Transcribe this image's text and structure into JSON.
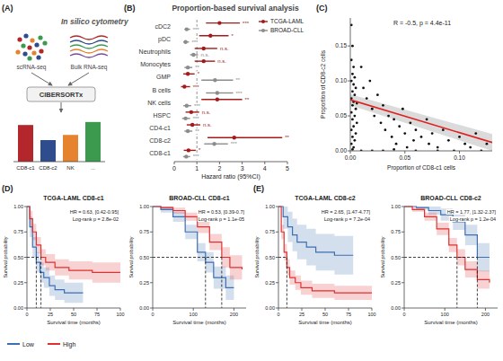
{
  "chart_data": [
    {
      "type": "bar",
      "panel": "(A)",
      "title": "In silico cytometry",
      "annotations": [
        "scRNA-seq",
        "Bulk RNA-seq",
        "CIBERSORTx"
      ],
      "categories": [
        "CD8-c1",
        "CD8-c2",
        "NK",
        "..."
      ],
      "values": [
        0.85,
        0.5,
        0.62,
        0.92
      ],
      "colors": [
        "#b3262b",
        "#2f4d8c",
        "#e5832e",
        "#3c9a4e"
      ],
      "ylim": [
        0,
        1
      ],
      "tick_labels": "x"
    },
    {
      "type": "forest",
      "panel": "(B)",
      "title": "Proportion-based survival analysis",
      "x_label": "Hazard ratio (95%CI)",
      "orientation": "horizontal",
      "legend": "top-right",
      "categories": [
        "cDC2",
        "pDC",
        "Neutrophils",
        "Monocytes",
        "GMP",
        "B cells",
        "NK cells",
        "HSPC",
        "CD4-c1",
        "CD8-c2",
        "CD8-c1"
      ],
      "xlim": [
        0,
        5
      ],
      "xticks": [
        0,
        1,
        2,
        3,
        4,
        5
      ],
      "ref_line": 1,
      "series": [
        {
          "name": "TCGA-LAML",
          "color": "#a31a1a",
          "values": [
            2.0,
            1.6,
            1.3,
            1.3,
            0.6,
            0.45,
            1.9,
            0.75,
            0.8,
            2.65,
            0.63
          ],
          "lower": [
            1.4,
            1.1,
            0.9,
            0.9,
            0.4,
            0.3,
            1.2,
            0.5,
            0.55,
            1.47,
            0.42
          ],
          "upper": [
            2.9,
            2.4,
            1.9,
            1.8,
            0.9,
            0.7,
            3.0,
            1.1,
            1.15,
            4.77,
            0.95
          ],
          "significance": [
            "***",
            "*",
            "n.s.",
            "n.s.",
            "*",
            "***",
            "**",
            "n.s.",
            "n.s.",
            "**",
            "*"
          ]
        },
        {
          "name": "BROAD-CLL",
          "color": "#8c8c8c",
          "values": [
            0.55,
            0.5,
            0.85,
            0.6,
            1.8,
            1.9,
            0.55,
            0.5,
            0.6,
            1.77,
            0.53
          ],
          "lower": [
            0.45,
            0.4,
            0.7,
            0.45,
            1.2,
            1.4,
            0.4,
            0.35,
            0.45,
            1.32,
            0.39
          ],
          "upper": [
            0.7,
            0.65,
            1.05,
            0.8,
            2.6,
            2.6,
            0.75,
            0.7,
            0.8,
            2.37,
            0.7
          ],
          "significance": [
            "***",
            "***",
            "n.s.",
            "**",
            "**",
            "***",
            "***",
            "***",
            "**",
            "***",
            "***"
          ]
        }
      ]
    },
    {
      "type": "scatter",
      "panel": "(C)",
      "annotations": [
        "R = -0.5, p = 4.4e-11"
      ],
      "x_label": "Proportion of CD8-c1 cells",
      "y_label": "Proportion of CD8-c2 cells",
      "color": "#111111",
      "xlim": [
        0,
        0.13
      ],
      "ylim": [
        0,
        0.19
      ],
      "xticks": [
        {
          "value": 0,
          "label": "0.00"
        },
        0.05,
        {
          "value": 0.1,
          "label": "0.10"
        }
      ],
      "yticks": [
        {
          "value": 0,
          "label": "0.00"
        },
        0.05,
        {
          "value": 0.1,
          "label": "0.10"
        },
        0.15
      ],
      "x": [
        0.001,
        0.002,
        0.001,
        0.003,
        0.002,
        0.004,
        0.001,
        0.003,
        0.005,
        0.002,
        0.004,
        0.001,
        0.003,
        0.006,
        0.002,
        0.005,
        0.001,
        0.004,
        0.002,
        0.006,
        0.003,
        0.001,
        0.005,
        0.002,
        0.004,
        0.001,
        0.003,
        0.002,
        0.01,
        0.012,
        0.015,
        0.018,
        0.02,
        0.022,
        0.025,
        0.028,
        0.03,
        0.032,
        0.035,
        0.038,
        0.04,
        0.042,
        0.045,
        0.048,
        0.05,
        0.052,
        0.055,
        0.058,
        0.06,
        0.065,
        0.07,
        0.072,
        0.075,
        0.08,
        0.085,
        0.09,
        0.095,
        0.1,
        0.105,
        0.11,
        0.115,
        0.12,
        0.125,
        0.01,
        0.02,
        0.03,
        0.04,
        0.06,
        0.08
      ],
      "values": [
        0.18,
        0.15,
        0.13,
        0.12,
        0.11,
        0.105,
        0.1,
        0.095,
        0.09,
        0.085,
        0.08,
        0.075,
        0.07,
        0.068,
        0.065,
        0.06,
        0.055,
        0.05,
        0.045,
        0.04,
        0.035,
        0.03,
        0.025,
        0.02,
        0.015,
        0.01,
        0.005,
        0.002,
        0.12,
        0.09,
        0.075,
        0.1,
        0.06,
        0.05,
        0.08,
        0.04,
        0.065,
        0.03,
        0.05,
        0.02,
        0.045,
        0.01,
        0.035,
        0.06,
        0.025,
        0.005,
        0.04,
        0.015,
        0.03,
        0.02,
        0.045,
        0.01,
        0.025,
        0.005,
        0.03,
        0.015,
        0,
        0.02,
        0.01,
        0.005,
        0.025,
        0,
        0.01,
        0,
        0,
        0,
        0.002,
        0,
        0
      ],
      "fit": {
        "color": "#e02020",
        "x": [
          0,
          0.13
        ],
        "values": [
          0.073,
          0.012
        ],
        "lower": [
          0.065,
          0.0
        ],
        "upper": [
          0.081,
          0.024
        ]
      }
    },
    {
      "type": "survival",
      "panel": "(D)",
      "title": "TCGA-LAML CD8-c1",
      "annotations": [
        "HR = 0.63, [0.42-0.95]",
        "Log-rank p = 2.8e-02"
      ],
      "x_label": "Survival time (months)",
      "y_label": "Survival probability",
      "legend": "bottom",
      "xlim": [
        0,
        100
      ],
      "ylim": [
        0,
        1
      ],
      "xticks": [
        0,
        25,
        50,
        75,
        100
      ],
      "yticks": [
        {
          "value": 0,
          "label": "0.00"
        },
        0.25,
        {
          "value": 0.5,
          "label": "0.50"
        },
        0.75,
        {
          "value": 1,
          "label": "1.00"
        }
      ],
      "series": [
        {
          "name": "Low",
          "color": "#3d6fb3",
          "median": 10,
          "x": [
            0,
            3,
            6,
            10,
            14,
            18,
            24,
            30,
            40,
            60
          ],
          "values": [
            1,
            0.8,
            0.6,
            0.45,
            0.35,
            0.3,
            0.22,
            0.18,
            0.15,
            0.15
          ],
          "lower": [
            1,
            0.7,
            0.5,
            0.35,
            0.25,
            0.2,
            0.12,
            0.08,
            0.05,
            0.05
          ],
          "upper": [
            1,
            0.9,
            0.7,
            0.55,
            0.45,
            0.4,
            0.32,
            0.28,
            0.25,
            0.25
          ]
        },
        {
          "name": "High",
          "color": "#e03030",
          "median": 15,
          "x": [
            0,
            3,
            6,
            10,
            15,
            20,
            30,
            45,
            70,
            100
          ],
          "values": [
            1,
            0.88,
            0.75,
            0.62,
            0.5,
            0.45,
            0.4,
            0.37,
            0.35,
            0.35
          ],
          "lower": [
            1,
            0.8,
            0.67,
            0.54,
            0.42,
            0.37,
            0.32,
            0.28,
            0.25,
            0.24
          ],
          "upper": [
            1,
            0.96,
            0.83,
            0.7,
            0.58,
            0.53,
            0.48,
            0.46,
            0.45,
            0.46
          ]
        }
      ]
    },
    {
      "type": "survival",
      "title": "BROAD-CLL CD8-c1",
      "annotations": [
        "HR = 0.53, [0.39-0.7]",
        "Log-rank p = 1.1e-05"
      ],
      "x_label": "Survival time (months)",
      "y_label": "Survival probability",
      "xlim": [
        0,
        230
      ],
      "ylim": [
        0,
        1
      ],
      "xticks": [
        0,
        100,
        200
      ],
      "yticks": [
        {
          "value": 0,
          "label": "0.00"
        },
        0.25,
        {
          "value": 0.5,
          "label": "0.50"
        },
        0.75,
        {
          "value": 1,
          "label": "1.00"
        }
      ],
      "series": [
        {
          "color": "#3d6fb3",
          "median": 130,
          "x": [
            0,
            20,
            50,
            80,
            110,
            130,
            150,
            180,
            200
          ],
          "values": [
            1,
            0.97,
            0.9,
            0.75,
            0.55,
            0.45,
            0.3,
            0.2,
            0.2
          ],
          "lower": [
            1,
            0.94,
            0.85,
            0.68,
            0.46,
            0.35,
            0.19,
            0.08,
            0.06
          ],
          "upper": [
            1,
            1,
            0.95,
            0.82,
            0.64,
            0.55,
            0.41,
            0.32,
            0.34
          ]
        },
        {
          "color": "#e03030",
          "median": 170,
          "x": [
            0,
            20,
            50,
            80,
            110,
            140,
            170,
            190,
            220
          ],
          "values": [
            1,
            0.99,
            0.96,
            0.9,
            0.8,
            0.65,
            0.5,
            0.4,
            0.38
          ],
          "lower": [
            1,
            0.97,
            0.93,
            0.86,
            0.74,
            0.57,
            0.4,
            0.28,
            0.24
          ],
          "upper": [
            1,
            1,
            0.99,
            0.94,
            0.86,
            0.73,
            0.6,
            0.52,
            0.52
          ]
        }
      ]
    },
    {
      "type": "survival",
      "panel": "(E)",
      "title": "TCGA-LAML CD8-c2",
      "annotations": [
        "HR = 2.65, [1.47-4.77]",
        "Log-rank p = 7.2e-04"
      ],
      "x_label": "Survival time (months)",
      "y_label": "Survival probability",
      "xlim": [
        0,
        100
      ],
      "ylim": [
        0,
        1
      ],
      "xticks": [
        0,
        25,
        50,
        75,
        100
      ],
      "yticks": [
        {
          "value": 0,
          "label": "0.00"
        },
        0.25,
        {
          "value": 0.5,
          "label": "0.50"
        },
        0.75,
        {
          "value": 1,
          "label": "1.00"
        }
      ],
      "series": [
        {
          "color": "#3d6fb3",
          "median": null,
          "x": [
            0,
            5,
            10,
            15,
            20,
            30,
            40,
            60,
            80
          ],
          "values": [
            1,
            0.9,
            0.8,
            0.72,
            0.65,
            0.6,
            0.55,
            0.52,
            0.52
          ],
          "lower": [
            1,
            0.78,
            0.65,
            0.56,
            0.48,
            0.42,
            0.37,
            0.33,
            0.33
          ],
          "upper": [
            1,
            1,
            0.95,
            0.88,
            0.82,
            0.78,
            0.73,
            0.71,
            0.71
          ]
        },
        {
          "color": "#e03030",
          "median": 9,
          "x": [
            0,
            3,
            6,
            9,
            12,
            18,
            24,
            36,
            60,
            100
          ],
          "values": [
            1,
            0.75,
            0.55,
            0.4,
            0.3,
            0.25,
            0.2,
            0.17,
            0.15,
            0.15
          ],
          "lower": [
            1,
            0.68,
            0.47,
            0.32,
            0.23,
            0.18,
            0.13,
            0.1,
            0.08,
            0.07
          ],
          "upper": [
            1,
            0.82,
            0.63,
            0.48,
            0.37,
            0.32,
            0.27,
            0.24,
            0.22,
            0.23
          ]
        }
      ]
    },
    {
      "type": "survival",
      "title": "BROAD-CLL CD8-c2",
      "annotations": [
        "HR = 1.77, [1.32-2.37]",
        "Log-rank p = 1.2e-04"
      ],
      "x_label": "Survival time (months)",
      "y_label": "Survival probability",
      "xlim": [
        0,
        230
      ],
      "ylim": [
        0,
        1
      ],
      "xticks": [
        0,
        100,
        200
      ],
      "yticks": [
        {
          "value": 0,
          "label": "0.00"
        },
        0.25,
        {
          "value": 0.5,
          "label": "0.50"
        },
        0.75,
        {
          "value": 1,
          "label": "1.00"
        }
      ],
      "series": [
        {
          "color": "#3d6fb3",
          "median": 180,
          "x": [
            0,
            30,
            60,
            90,
            120,
            150,
            180,
            210
          ],
          "values": [
            1,
            0.99,
            0.96,
            0.92,
            0.85,
            0.72,
            0.5,
            0.5
          ],
          "lower": [
            1,
            0.97,
            0.92,
            0.86,
            0.77,
            0.62,
            0.36,
            0.34
          ],
          "upper": [
            1,
            1,
            1,
            0.98,
            0.93,
            0.82,
            0.64,
            0.66
          ]
        },
        {
          "color": "#e03030",
          "median": 130,
          "x": [
            0,
            20,
            50,
            80,
            110,
            130,
            150,
            180,
            210
          ],
          "values": [
            1,
            0.97,
            0.9,
            0.78,
            0.62,
            0.5,
            0.38,
            0.28,
            0.25
          ],
          "lower": [
            1,
            0.95,
            0.86,
            0.72,
            0.55,
            0.42,
            0.3,
            0.19,
            0.15
          ],
          "upper": [
            1,
            0.99,
            0.94,
            0.84,
            0.69,
            0.58,
            0.46,
            0.37,
            0.35
          ]
        }
      ]
    }
  ]
}
